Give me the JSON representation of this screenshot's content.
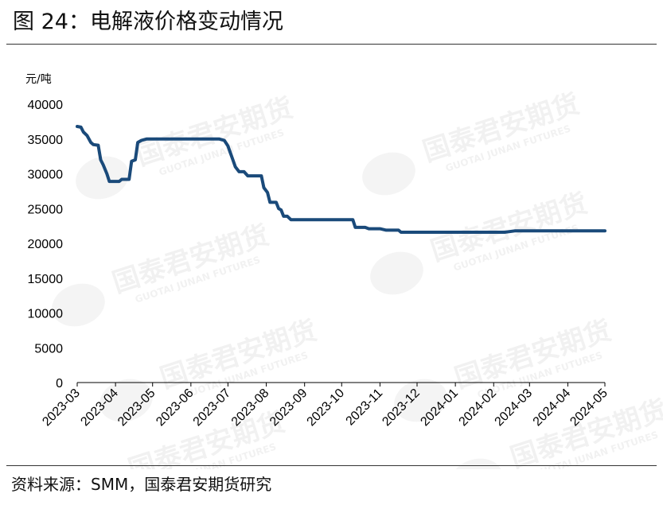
{
  "title": "图 24：电解液价格变动情况",
  "source": "资料来源：SMM，国泰君安期货研究",
  "watermark": {
    "text": "国泰君安期货",
    "sub": "GUOTAI JUNAN FUTURES"
  },
  "chart_data": {
    "type": "line",
    "title": "",
    "ylabel": "元/吨",
    "xlabel": "",
    "ylim": [
      0,
      40000
    ],
    "yticks": [
      0,
      5000,
      10000,
      15000,
      20000,
      25000,
      30000,
      35000,
      40000
    ],
    "xticks": [
      "2023-03",
      "2023-04",
      "2023-05",
      "2023-06",
      "2023-07",
      "2023-08",
      "2023-09",
      "2023-10",
      "2023-11",
      "2023-12",
      "2024-01",
      "2024-02",
      "2024-03",
      "2024-04",
      "2024-05"
    ],
    "xlim": [
      "2023-03-01",
      "2024-05-01"
    ],
    "legend": "none",
    "grid": false,
    "line_color": "#1a4a7a",
    "series": [
      {
        "name": "",
        "points": [
          [
            "2023-03-01",
            36800
          ],
          [
            "2023-03-04",
            36700
          ],
          [
            "2023-03-06",
            36000
          ],
          [
            "2023-03-09",
            35500
          ],
          [
            "2023-03-12",
            34500
          ],
          [
            "2023-03-14",
            34200
          ],
          [
            "2023-03-18",
            34100
          ],
          [
            "2023-03-20",
            32000
          ],
          [
            "2023-03-22",
            31300
          ],
          [
            "2023-03-25",
            30000
          ],
          [
            "2023-03-27",
            28900
          ],
          [
            "2023-04-01",
            28900
          ],
          [
            "2023-04-04",
            28900
          ],
          [
            "2023-04-06",
            29200
          ],
          [
            "2023-04-12",
            29200
          ],
          [
            "2023-04-14",
            31800
          ],
          [
            "2023-04-17",
            32000
          ],
          [
            "2023-04-19",
            34500
          ],
          [
            "2023-04-22",
            34800
          ],
          [
            "2023-04-26",
            35000
          ],
          [
            "2023-05-10",
            35000
          ],
          [
            "2023-06-01",
            35000
          ],
          [
            "2023-06-24",
            35000
          ],
          [
            "2023-06-28",
            34800
          ],
          [
            "2023-07-01",
            34000
          ],
          [
            "2023-07-03",
            33000
          ],
          [
            "2023-07-05",
            32000
          ],
          [
            "2023-07-07",
            31000
          ],
          [
            "2023-07-10",
            30300
          ],
          [
            "2023-07-14",
            30300
          ],
          [
            "2023-07-17",
            29700
          ],
          [
            "2023-07-24",
            29700
          ],
          [
            "2023-07-28",
            29700
          ],
          [
            "2023-07-30",
            28000
          ],
          [
            "2023-08-02",
            27300
          ],
          [
            "2023-08-04",
            25900
          ],
          [
            "2023-08-07",
            25900
          ],
          [
            "2023-08-09",
            25900
          ],
          [
            "2023-08-11",
            25000
          ],
          [
            "2023-08-13",
            24800
          ],
          [
            "2023-08-15",
            23900
          ],
          [
            "2023-08-18",
            23900
          ],
          [
            "2023-08-21",
            23400
          ],
          [
            "2023-09-01",
            23400
          ],
          [
            "2023-10-01",
            23400
          ],
          [
            "2023-10-10",
            23400
          ],
          [
            "2023-10-12",
            22300
          ],
          [
            "2023-10-20",
            22300
          ],
          [
            "2023-10-23",
            22100
          ],
          [
            "2023-11-01",
            22100
          ],
          [
            "2023-11-06",
            21900
          ],
          [
            "2023-11-16",
            21900
          ],
          [
            "2023-11-18",
            21600
          ],
          [
            "2023-12-01",
            21600
          ],
          [
            "2024-01-01",
            21600
          ],
          [
            "2024-02-01",
            21600
          ],
          [
            "2024-02-10",
            21600
          ],
          [
            "2024-02-18",
            21800
          ],
          [
            "2024-03-01",
            21800
          ],
          [
            "2024-04-01",
            21800
          ],
          [
            "2024-05-01",
            21800
          ]
        ]
      }
    ]
  }
}
